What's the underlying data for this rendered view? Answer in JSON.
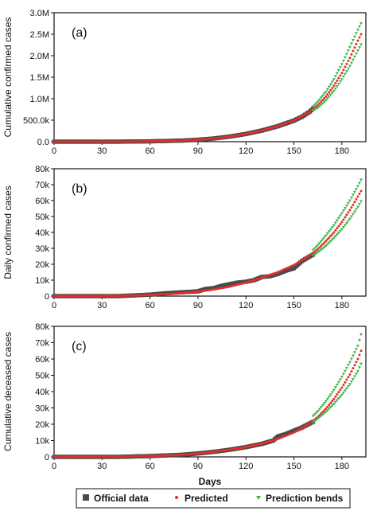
{
  "colors": {
    "official": "#4a4a4a",
    "predicted": "#e0302a",
    "bands": "#3fb54a",
    "axis": "#111111"
  },
  "legend": {
    "official_label": "Official data",
    "predicted_label": "Predicted",
    "bands_label": "Prediction bends"
  },
  "chart_data": [
    {
      "type": "scatter",
      "panel": "(a)",
      "xlabel": "",
      "ylabel": "Cumulative confirmed cases",
      "xlim": [
        0,
        195
      ],
      "ylim": [
        0,
        3000000
      ],
      "xticks": [
        0,
        30,
        60,
        90,
        120,
        150,
        180
      ],
      "yticks": [
        0,
        500000,
        1000000,
        1500000,
        2000000,
        2500000,
        3000000
      ],
      "ytick_labels": [
        "0.0",
        "500.0k",
        "1.0M",
        "1.5M",
        "2.0M",
        "2.5M",
        "3.0M"
      ],
      "official_end_day": 162,
      "series": [
        {
          "name": "Official data",
          "x": [
            0,
            40,
            60,
            80,
            90,
            100,
            110,
            120,
            130,
            140,
            150,
            155,
            160,
            162
          ],
          "y": [
            0,
            0,
            8000,
            25000,
            45000,
            75000,
            120000,
            180000,
            260000,
            360000,
            490000,
            580000,
            700000,
            770000
          ]
        },
        {
          "name": "Predicted",
          "x": [
            0,
            40,
            60,
            80,
            90,
            100,
            110,
            120,
            130,
            140,
            150,
            160,
            165,
            170,
            175,
            180,
            185,
            190,
            192
          ],
          "y": [
            0,
            0,
            8000,
            25000,
            45000,
            75000,
            120000,
            180000,
            260000,
            360000,
            490000,
            700000,
            850000,
            1050000,
            1300000,
            1600000,
            1950000,
            2350000,
            2500000
          ]
        },
        {
          "name": "Prediction bends",
          "x": [
            162,
            165,
            170,
            175,
            180,
            185,
            190,
            192
          ],
          "y": [
            820000,
            930000,
            1160000,
            1450000,
            1800000,
            2200000,
            2600000,
            2750000
          ]
        },
        {
          "name": "Prediction bends",
          "x": [
            162,
            165,
            170,
            175,
            180,
            185,
            190,
            192
          ],
          "y": [
            730000,
            790000,
            960000,
            1180000,
            1450000,
            1760000,
            2120000,
            2260000
          ]
        }
      ]
    },
    {
      "type": "scatter",
      "panel": "(b)",
      "xlabel": "",
      "ylabel": "Daily confirmed cases",
      "xlim": [
        0,
        195
      ],
      "ylim": [
        0,
        80000
      ],
      "xticks": [
        0,
        30,
        60,
        90,
        120,
        150,
        180
      ],
      "yticks": [
        0,
        10000,
        20000,
        30000,
        40000,
        50000,
        60000,
        70000,
        80000
      ],
      "ytick_labels": [
        "0",
        "10k",
        "20k",
        "30k",
        "40k",
        "50k",
        "60k",
        "70k",
        "80k"
      ],
      "official_end_day": 162,
      "series": [
        {
          "name": "Official data",
          "x": [
            0,
            40,
            60,
            70,
            80,
            90,
            95,
            100,
            105,
            110,
            115,
            120,
            125,
            130,
            135,
            140,
            145,
            150,
            155,
            160,
            162
          ],
          "y": [
            0,
            0,
            900,
            1800,
            2400,
            3000,
            4500,
            5000,
            6500,
            7500,
            8500,
            9000,
            10000,
            12000,
            12500,
            14000,
            16000,
            17500,
            22000,
            25000,
            26000
          ]
        },
        {
          "name": "Predicted",
          "x": [
            0,
            40,
            60,
            80,
            90,
            100,
            110,
            120,
            130,
            140,
            150,
            160,
            165,
            170,
            175,
            180,
            185,
            190,
            192
          ],
          "y": [
            0,
            200,
            700,
            1800,
            2800,
            4200,
            6000,
            8500,
            11500,
            15000,
            19500,
            25500,
            29500,
            34500,
            40000,
            46500,
            54000,
            62500,
            66000
          ]
        },
        {
          "name": "Prediction bends",
          "x": [
            162,
            165,
            170,
            175,
            180,
            185,
            190,
            192
          ],
          "y": [
            29000,
            32000,
            38000,
            44500,
            52000,
            60000,
            69000,
            73000
          ]
        },
        {
          "name": "Prediction bends",
          "x": [
            162,
            165,
            170,
            175,
            180,
            185,
            190,
            192
          ],
          "y": [
            25500,
            27500,
            31500,
            36500,
            42000,
            48500,
            56000,
            59500
          ]
        }
      ]
    },
    {
      "type": "scatter",
      "panel": "(c)",
      "xlabel": "Days",
      "ylabel": "Cumulative deceased cases",
      "xlim": [
        0,
        195
      ],
      "ylim": [
        0,
        80000
      ],
      "xticks": [
        0,
        30,
        60,
        90,
        120,
        150,
        180
      ],
      "yticks": [
        0,
        10000,
        20000,
        30000,
        40000,
        50000,
        60000,
        70000,
        80000
      ],
      "ytick_labels": [
        "0",
        "10k",
        "20k",
        "30k",
        "40k",
        "50k",
        "60k",
        "70k",
        "80k"
      ],
      "official_end_day": 162,
      "series": [
        {
          "name": "Official data",
          "x": [
            0,
            40,
            60,
            80,
            90,
            100,
            110,
            120,
            130,
            137,
            140,
            145,
            150,
            155,
            160,
            162
          ],
          "y": [
            0,
            0,
            500,
            1300,
            2100,
            3100,
            4400,
            6000,
            8000,
            10000,
            12500,
            14000,
            16000,
            18000,
            20500,
            21500
          ]
        },
        {
          "name": "Predicted",
          "x": [
            0,
            40,
            60,
            80,
            90,
            100,
            110,
            120,
            130,
            140,
            150,
            160,
            165,
            170,
            175,
            180,
            185,
            190,
            192
          ],
          "y": [
            0,
            100,
            500,
            1300,
            2100,
            3100,
            4400,
            6000,
            8200,
            11000,
            15000,
            20500,
            24500,
            29500,
            35500,
            42500,
            50500,
            60000,
            65000
          ]
        },
        {
          "name": "Prediction bends",
          "x": [
            162,
            165,
            170,
            175,
            180,
            185,
            190,
            192
          ],
          "y": [
            25000,
            28000,
            34000,
            41000,
            49000,
            58000,
            68000,
            75000
          ]
        },
        {
          "name": "Prediction bends",
          "x": [
            162,
            165,
            170,
            175,
            180,
            185,
            190,
            192
          ],
          "y": [
            21000,
            23500,
            27500,
            32500,
            38000,
            44500,
            52500,
            57000
          ]
        }
      ]
    }
  ]
}
